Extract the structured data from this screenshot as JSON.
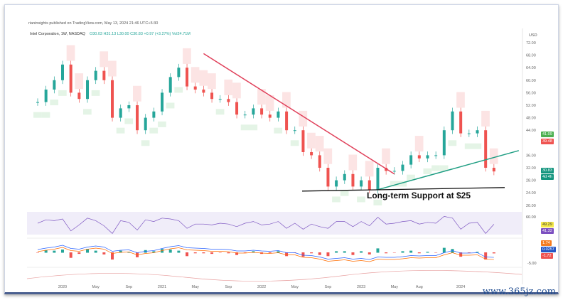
{
  "header": {
    "published": "rianinsights published on TradingView.com, May 13, 2024 21:46 UTC+5:30",
    "symbol": "Intel Corporation, 1W, NASDAQ",
    "ohlc": "O30.03 H31.13 L30.00 C30.83 +0.97 (+3.27%) Vol24.71M"
  },
  "currency": "USD",
  "badges": {
    "upper": "41.09",
    "lower": "39.48",
    "price": "30.83",
    "countdown": "4d 4h",
    "rsi_a": "49.29",
    "rsi_b": "41.32",
    "macd_a": "1.74",
    "macd_b": "0.0257",
    "macd_c": "-1.72"
  },
  "colors": {
    "up": "#26a69a",
    "down": "#ef5350",
    "trend_down": "#e0405a",
    "trend_up": "#1f9e83"
  },
  "annotation": "Long-term Support at $25",
  "macd_tick": "-5.00",
  "rsi_tick": "60.00",
  "watermark": "www.365jz.com",
  "chart_data": {
    "type": "candlestick",
    "title": "Intel Corporation, 1W, NASDAQ",
    "y_ticks": [
      72,
      68,
      64,
      60,
      56,
      52,
      48,
      44,
      36,
      32,
      28,
      24,
      20
    ],
    "ylim": [
      20,
      72
    ],
    "x_ticks": [
      "2020",
      "May",
      "Sep",
      "2021",
      "May",
      "Sep",
      "2022",
      "May",
      "Sep",
      "2023",
      "May",
      "Aug",
      "2024"
    ],
    "x_tick_months": [
      0,
      4,
      8,
      12,
      16,
      20,
      24,
      28,
      32,
      36,
      40,
      43,
      48
    ],
    "start_month": -3,
    "closes": [
      53,
      57,
      60,
      65,
      56,
      54,
      60,
      63,
      60,
      48,
      51,
      52,
      44,
      48,
      50,
      56,
      61,
      64,
      58,
      57,
      56,
      54,
      54,
      53,
      49,
      49,
      51,
      49,
      48,
      50,
      44,
      44,
      37,
      36,
      32,
      26,
      28,
      30,
      26,
      28,
      25,
      32,
      31,
      31,
      33,
      36,
      35,
      36,
      36,
      44,
      50,
      43,
      43,
      44,
      32,
      30.83
    ],
    "support_level": 25,
    "trendlines": [
      {
        "name": "downtrend",
        "from": [
          17,
          68.5
        ],
        "to": [
          40,
          30
        ]
      },
      {
        "name": "uptrend",
        "from": [
          38,
          25
        ],
        "to": [
          55,
          37.5
        ]
      }
    ]
  }
}
